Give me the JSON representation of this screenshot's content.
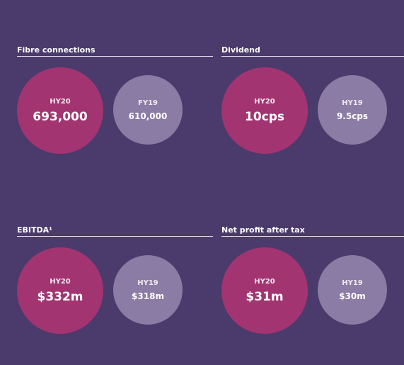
{
  "panels": [
    {
      "title": "Fibre connections",
      "current": {
        "period": "HY20",
        "value": "693,000"
      },
      "prior": {
        "period": "FY19",
        "value": "610,000"
      }
    },
    {
      "title": "Dividend",
      "current": {
        "period": "HY20",
        "value": "10cps"
      },
      "prior": {
        "period": "HY19",
        "value": "9.5cps"
      }
    },
    {
      "title": "EBITDA¹",
      "current": {
        "period": "HY20",
        "value": "$332m"
      },
      "prior": {
        "period": "HY19",
        "value": "$318m"
      }
    },
    {
      "title": "Net profit after tax",
      "current": {
        "period": "HY20",
        "value": "$31m"
      },
      "prior": {
        "period": "HY19",
        "value": "$30m"
      }
    }
  ],
  "colors": {
    "background": "#4b3a6c",
    "current_circle": "#a23571",
    "prior_circle": "#8a7ca4"
  }
}
